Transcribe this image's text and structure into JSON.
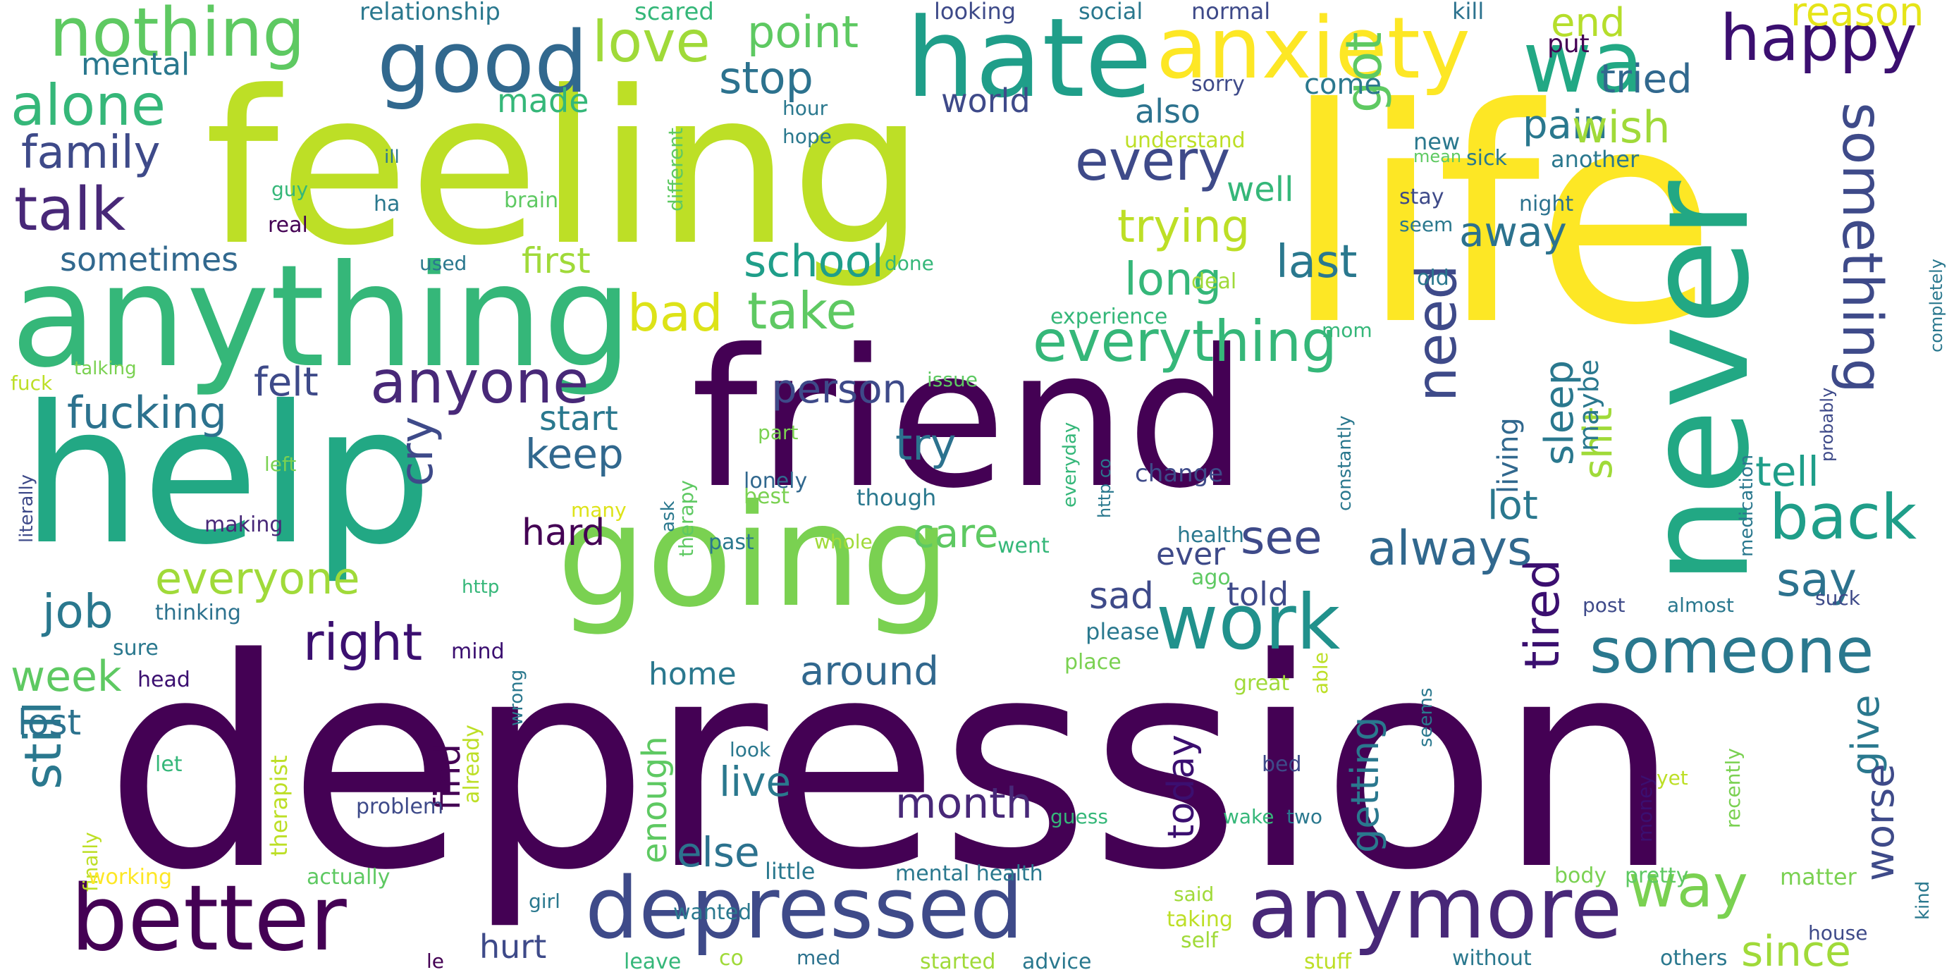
{
  "palette": {
    "dark_purple": "#440154",
    "indigo": "#414487",
    "blue": "#2a788e",
    "teal": "#22a884",
    "green": "#7ad151",
    "yellow_green": "#bddf26",
    "yellow": "#fde725"
  },
  "words": [
    "depression",
    "life",
    "feeling",
    "friend",
    "help",
    "anything",
    "going",
    "never",
    "hate",
    "anxiety",
    "wa",
    "good",
    "nothing",
    "alone",
    "talk",
    "family",
    "love",
    "point",
    "stop",
    "happy",
    "tried",
    "end",
    "reason",
    "every",
    "got",
    "something",
    "pain",
    "wish",
    "back",
    "everything",
    "anyone",
    "take",
    "bad",
    "trying",
    "long",
    "last",
    "school",
    "fucking",
    "felt",
    "person",
    "keep",
    "try",
    "start",
    "cry",
    "first",
    "sometimes",
    "need",
    "tired",
    "sleep",
    "shit",
    "tell",
    "maybe",
    "living",
    "lot",
    "see",
    "always",
    "say",
    "someone",
    "work",
    "ever",
    "sad",
    "care",
    "hard",
    "right",
    "everyone",
    "job",
    "week",
    "still",
    "lost",
    "better",
    "depressed",
    "anymore",
    "way",
    "since",
    "give",
    "worse",
    "getting",
    "today",
    "told",
    "find",
    "month",
    "live",
    "enough",
    "else",
    "home",
    "around",
    "hurt",
    "world",
    "made",
    "mental",
    "also",
    "come",
    "well",
    "away",
    "relationship",
    "scared",
    "looking",
    "social",
    "normal",
    "kill",
    "put",
    "sorry",
    "hour",
    "hope",
    "understand",
    "new",
    "mean",
    "sick",
    "another",
    "night",
    "stay",
    "seem",
    "old",
    "deal",
    "experience",
    "mom",
    "issue",
    "part",
    "best",
    "lonely",
    "though",
    "change",
    "past",
    "whole",
    "went",
    "health",
    "ago",
    "please",
    "place",
    "great",
    "able",
    "mind",
    "therapist",
    "already",
    "let",
    "problem",
    "guess",
    "wake",
    "two",
    "finally",
    "working",
    "actually",
    "girl",
    "little",
    "mental health",
    "body",
    "pretty",
    "matter",
    "kind",
    "house",
    "le",
    "co",
    "med",
    "started",
    "advice",
    "self",
    "stuff",
    "without",
    "others",
    "leave",
    "wanted",
    "taking",
    "said",
    "bed",
    "money",
    "yet",
    "recently",
    "post",
    "almost",
    "suck",
    "medication",
    "probably",
    "completely",
    "constantly",
    "therapy",
    "everyday",
    "http co",
    "ask",
    "different",
    "done",
    "used",
    "guy",
    "ha",
    "brain",
    "ill",
    "real",
    "fuck",
    "talking",
    "literally",
    "left",
    "making",
    "many",
    "http",
    "thinking",
    "sure",
    "head",
    "wrong",
    "seems",
    "look"
  ]
}
